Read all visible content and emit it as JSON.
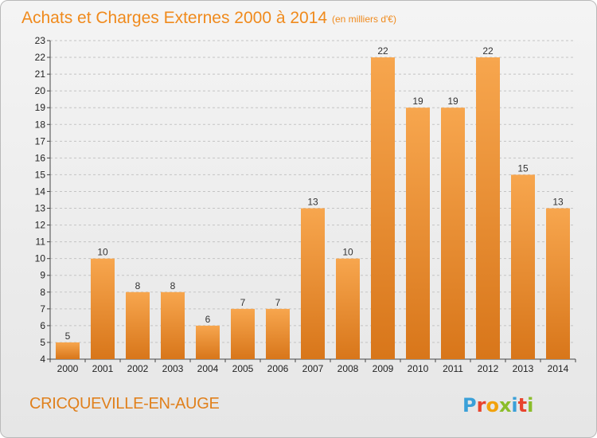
{
  "header": {
    "title": "Achats et Charges Externes 2000 à 2014",
    "unit": "(en milliers d'€)"
  },
  "footer": {
    "town": "CRICQUEVILLE-EN-AUGE",
    "logo": {
      "letters": [
        "P",
        "r",
        "o",
        "x",
        "i",
        "t",
        "i"
      ],
      "colors": [
        "#3aa0d8",
        "#e8442e",
        "#f2a20c",
        "#8bbd2a",
        "#3aa0d8",
        "#e8442e",
        "#8bbd2a"
      ]
    }
  },
  "colors": {
    "bar_top": "#f7a64e",
    "bar_bottom": "#d8761a",
    "accent": "#f08a1c",
    "grid": "#c4c4c4"
  },
  "chart_data": {
    "type": "bar",
    "title": "Achats et Charges Externes 2000 à 2014",
    "subtitle": "(en milliers d'€)",
    "categories": [
      "2000",
      "2001",
      "2002",
      "2003",
      "2004",
      "2005",
      "2006",
      "2007",
      "2008",
      "2009",
      "2010",
      "2011",
      "2012",
      "2013",
      "2014"
    ],
    "values": [
      5,
      10,
      8,
      8,
      6,
      7,
      7,
      13,
      10,
      22,
      19,
      19,
      22,
      15,
      13
    ],
    "ylim": [
      4,
      23
    ],
    "yticks": [
      4,
      5,
      6,
      7,
      8,
      9,
      10,
      11,
      12,
      13,
      14,
      15,
      16,
      17,
      18,
      19,
      20,
      21,
      22,
      23
    ],
    "grid": true,
    "xlabel": "",
    "ylabel": ""
  }
}
